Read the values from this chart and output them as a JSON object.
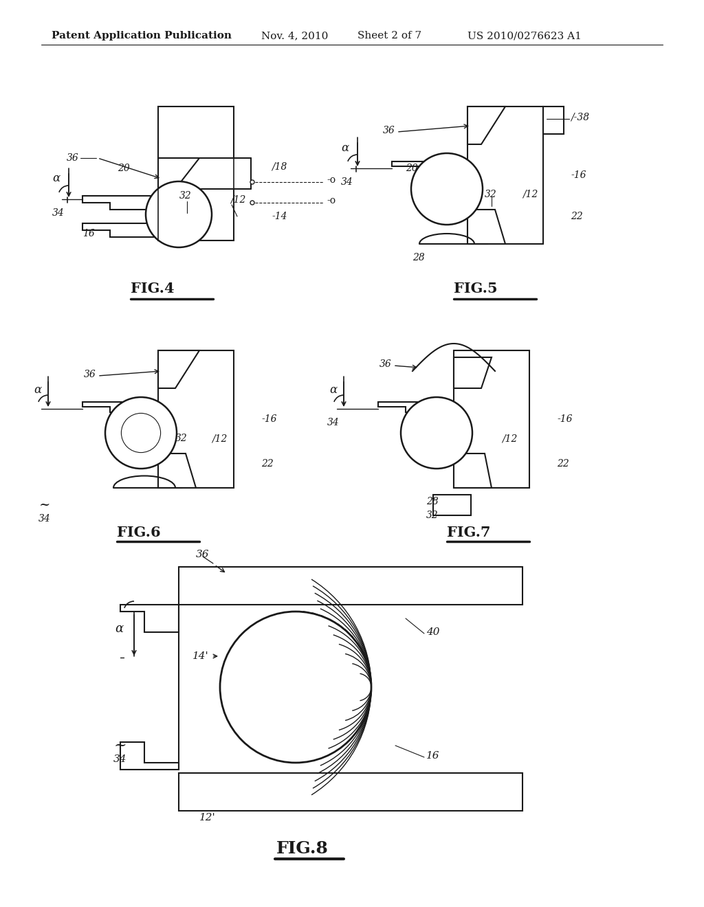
{
  "bg_color": "#ffffff",
  "line_color": "#1a1a1a",
  "header_text": "Patent Application Publication",
  "header_date": "Nov. 4, 2010",
  "header_sheet": "Sheet 2 of 7",
  "header_patent": "US 2010/0276623 A1",
  "fig4_label": "FIG.4",
  "fig5_label": "FIG.5",
  "fig6_label": "FIG.6",
  "fig7_label": "FIG.7",
  "fig8_label": "FIG.8"
}
